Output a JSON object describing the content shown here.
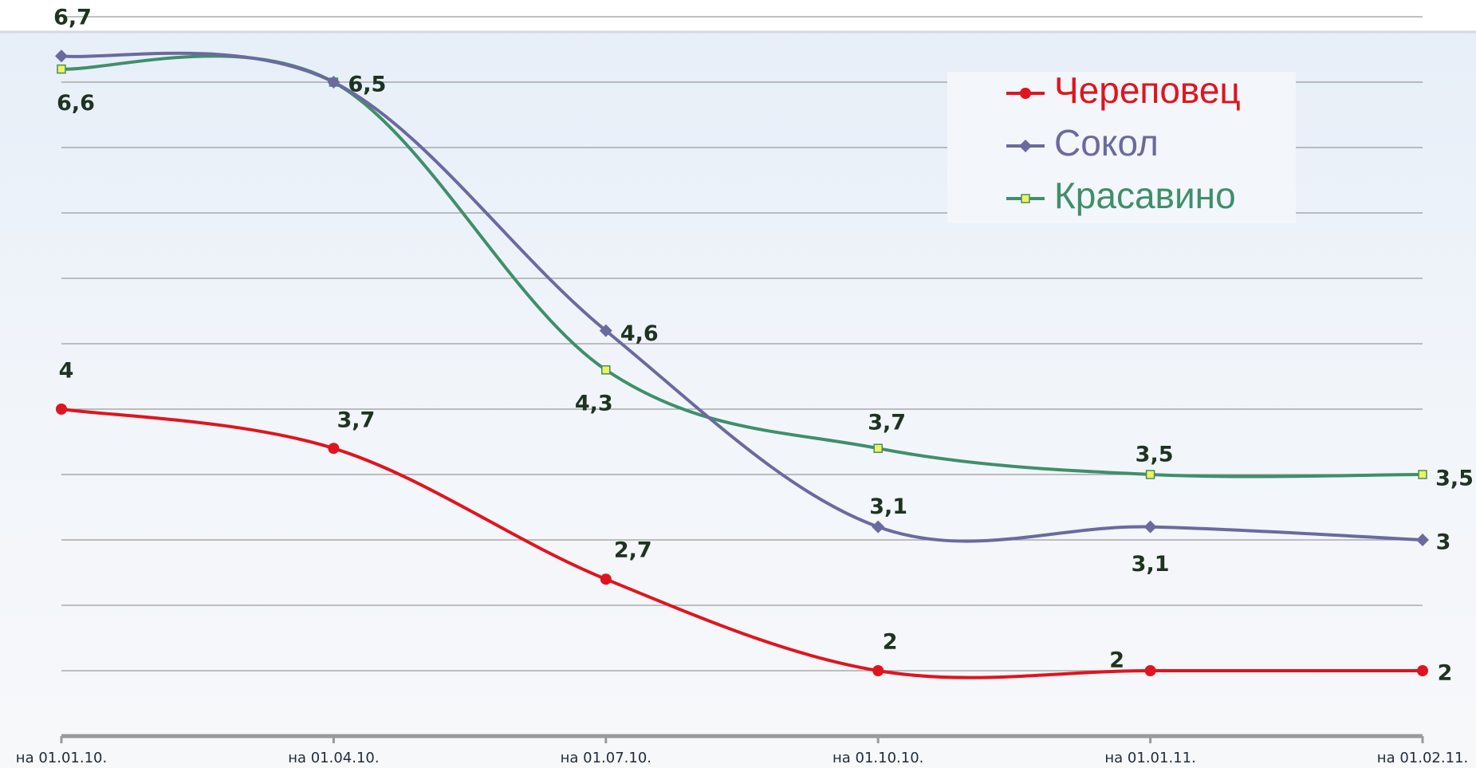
{
  "chart_data": {
    "type": "line",
    "categories": [
      "на 01.01.10.",
      "на 01.04.10.",
      "на 01.07.10.",
      "на 01.10.10.",
      "на 01.01.11.",
      "на 01.02.11."
    ],
    "series": [
      {
        "name": "Череповец",
        "color": "#e0141e",
        "marker": "circle",
        "values": [
          4,
          3.7,
          2.7,
          2,
          2,
          2
        ],
        "value_labels": [
          "4",
          "3,7",
          "2,7",
          "2",
          "2",
          "2"
        ]
      },
      {
        "name": "Сокол",
        "color": "#6a6aa0",
        "marker": "diamond",
        "values": [
          6.7,
          6.5,
          4.6,
          3.1,
          3.1,
          3
        ],
        "value_labels": [
          "6,7",
          "6,5",
          "4,6",
          "3,1",
          "3,1",
          "3"
        ]
      },
      {
        "name": "Красавино",
        "color": "#3f8f6a",
        "marker": "square",
        "values": [
          6.6,
          6.5,
          4.3,
          3.7,
          3.5,
          3.5
        ],
        "value_labels": [
          "6,6",
          "6,5",
          "4,3",
          "3,7",
          "3,5",
          "3,5"
        ]
      }
    ],
    "ylim": [
      1.5,
      7
    ],
    "yticks": [
      1.5,
      2,
      2.5,
      3,
      3.5,
      4,
      4.5,
      5,
      5.5,
      6,
      6.5,
      7
    ],
    "grid": true,
    "legend": "top-right"
  }
}
